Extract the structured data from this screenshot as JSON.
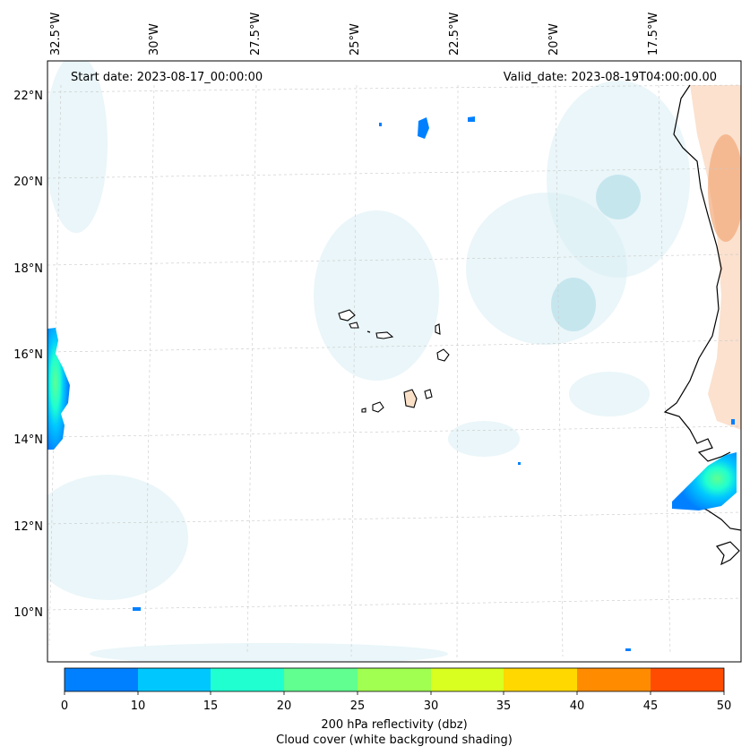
{
  "map": {
    "start_label": "Start date: 2023-08-17_00:00:00",
    "valid_label": "Valid_date: 2023-08-19T04:00:00.00",
    "lon_labels": [
      "32.5°W",
      "30°W",
      "27.5°W",
      "25°W",
      "22.5°W",
      "20°W",
      "17.5°W"
    ],
    "lat_labels": [
      "22°N",
      "20°N",
      "18°N",
      "16°N",
      "14°N",
      "12°N",
      "10°N"
    ]
  },
  "colorbar": {
    "ticks": [
      "0",
      "10",
      "15",
      "20",
      "25",
      "30",
      "35",
      "40",
      "45",
      "50"
    ],
    "colors": [
      "#0080ff",
      "#00c8ff",
      "#20ffd0",
      "#60ff90",
      "#a0ff50",
      "#d8ff20",
      "#ffd800",
      "#ff8c00",
      "#ff4c00"
    ],
    "title_line1": "200 hPa reflectivity (dbz)",
    "title_line2": "Cloud cover (white background shading)"
  }
}
